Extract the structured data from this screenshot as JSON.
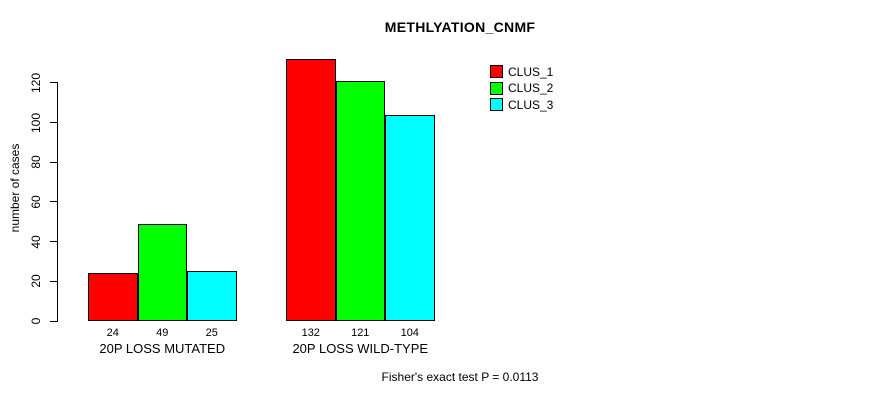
{
  "chart_data": {
    "type": "bar",
    "title": "METHLYATION_CNMF",
    "ylabel": "number of cases",
    "xlabel": "",
    "categories": [
      "20P LOSS MUTATED",
      "20P LOSS WILD-TYPE"
    ],
    "series": [
      {
        "name": "CLUS_1",
        "color": "#ff0000",
        "values": [
          24,
          132
        ]
      },
      {
        "name": "CLUS_2",
        "color": "#00ff00",
        "values": [
          49,
          121
        ]
      },
      {
        "name": "CLUS_3",
        "color": "#00ffff",
        "values": [
          25,
          104
        ]
      }
    ],
    "ylim": [
      0,
      132
    ],
    "yticks": [
      0,
      20,
      40,
      60,
      80,
      100,
      120
    ],
    "grid": false,
    "bar_value_labels_shown": true,
    "legend": {
      "position": "top-right",
      "entries": [
        "CLUS_1",
        "CLUS_2",
        "CLUS_3"
      ]
    },
    "annotation": "Fisher's exact test P = 0.0113"
  },
  "colors": {
    "background": "#ffffff",
    "axis": "#000000",
    "text": "#000000"
  }
}
